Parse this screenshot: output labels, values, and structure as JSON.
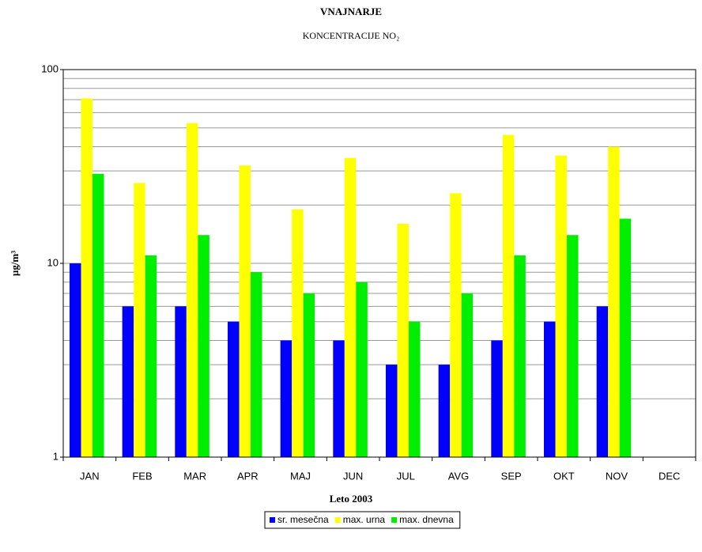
{
  "chart_data": {
    "type": "bar",
    "title": "VNAJNARJE",
    "subtitle": "KONCENTRACIJE NO₂",
    "x_label": "Leto 2003",
    "y_label": "µg/m³",
    "categories": [
      "JAN",
      "FEB",
      "MAR",
      "APR",
      "MAJ",
      "JUN",
      "JUL",
      "AVG",
      "SEP",
      "OKT",
      "NOV",
      "DEC"
    ],
    "series": [
      {
        "name": "sr. mesečna",
        "color": "#0000ff",
        "values": [
          10,
          6,
          6,
          5,
          4,
          4,
          3,
          3,
          4,
          5,
          6,
          null
        ]
      },
      {
        "name": "max. urna",
        "color": "#ffff00",
        "values": [
          71,
          26,
          53,
          32,
          19,
          35,
          16,
          23,
          46,
          36,
          40,
          null
        ]
      },
      {
        "name": "max. dnevna",
        "color": "#00ee00",
        "values": [
          29,
          11,
          14,
          9,
          7,
          8,
          5,
          7,
          11,
          14,
          17,
          null
        ]
      }
    ],
    "log_scale": true,
    "ylim": [
      1,
      100
    ],
    "yticks": [
      1,
      10,
      100
    ],
    "minor_yticks": [
      2,
      3,
      4,
      5,
      6,
      7,
      8,
      9,
      20,
      30,
      40,
      50,
      60,
      70,
      80,
      90
    ],
    "grid": true,
    "legend": "bottom"
  }
}
